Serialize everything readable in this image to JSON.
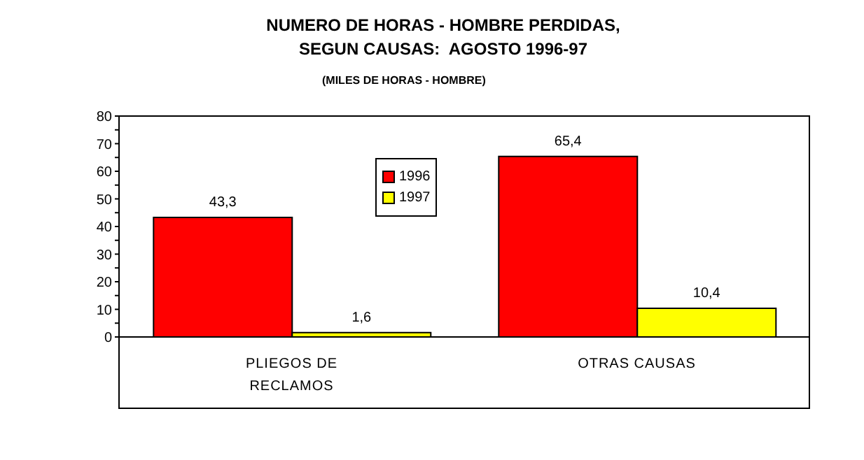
{
  "chart_data": {
    "type": "bar",
    "title": "NUMERO DE HORAS - HOMBRE PERDIDAS,\nSEGUN CAUSAS:  AGOSTO 1996-97",
    "subtitle": "(MILES DE HORAS - HOMBRE)",
    "categories": [
      "PLIEGOS DE RECLAMOS",
      "OTRAS CAUSAS"
    ],
    "series": [
      {
        "name": "1996",
        "color": "#ff0000",
        "values": [
          43.3,
          65.4
        ],
        "value_labels": [
          "43,3",
          "65,4"
        ]
      },
      {
        "name": "1997",
        "color": "#ffff00",
        "values": [
          1.6,
          10.4
        ],
        "value_labels": [
          "1,6",
          "10,4"
        ]
      }
    ],
    "ylim": [
      0,
      80
    ],
    "yticks": [
      0,
      {
        "value": 5,
        "label": null
      },
      10,
      {
        "value": 15,
        "label": null
      },
      20,
      {
        "value": 25,
        "label": null
      },
      30,
      {
        "value": 35,
        "label": null
      },
      40,
      {
        "value": 45,
        "label": null
      },
      50,
      {
        "value": 55,
        "label": null
      },
      60,
      {
        "value": 65,
        "label": null
      },
      70,
      {
        "value": 75,
        "label": null
      },
      80
    ],
    "grid": false,
    "legend": "top"
  }
}
